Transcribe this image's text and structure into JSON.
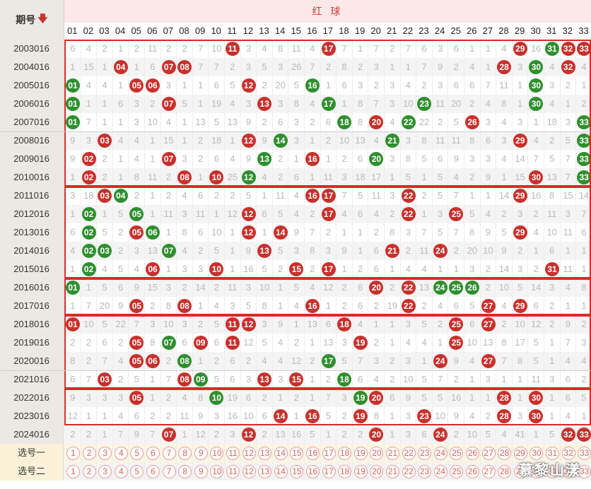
{
  "header": {
    "period_label": "期号",
    "period_sort_icon": "down-arrow-icon",
    "section_title": "红 球"
  },
  "numbers": [
    "01",
    "02",
    "03",
    "04",
    "05",
    "06",
    "07",
    "08",
    "09",
    "10",
    "11",
    "12",
    "13",
    "14",
    "15",
    "16",
    "17",
    "18",
    "19",
    "20",
    "21",
    "22",
    "23",
    "24",
    "25",
    "26",
    "27",
    "28",
    "29",
    "30",
    "31",
    "32",
    "33"
  ],
  "rows": [
    {
      "period": "2003016",
      "cells": [
        "6",
        "4",
        "2",
        "1",
        "2",
        "11",
        "2",
        "2",
        "7",
        "10",
        "R",
        "3",
        "4",
        "8",
        "11",
        "4",
        "R",
        "7",
        "1",
        "7",
        "2",
        "7",
        "6",
        "3",
        "6",
        "1",
        "1",
        "4",
        "R",
        "16",
        "G",
        "R",
        "R"
      ]
    },
    {
      "period": "2004016",
      "cells": [
        "1",
        "15",
        "1",
        "R",
        "1",
        "6",
        "R",
        "R",
        "7",
        "7",
        "2",
        "3",
        "5",
        "3",
        "26",
        "7",
        "2",
        "8",
        "2",
        "3",
        "1",
        "1",
        "7",
        "9",
        "2",
        "4",
        "1",
        "R",
        "3",
        "G",
        "4",
        "R",
        "4"
      ]
    },
    {
      "period": "2005016",
      "cells": [
        "G",
        "4",
        "4",
        "1",
        "R",
        "R",
        "3",
        "1",
        "1",
        "6",
        "5",
        "R",
        "2",
        "20",
        "5",
        "G",
        "1",
        "6",
        "3",
        "2",
        "3",
        "4",
        "2",
        "3",
        "6",
        "6",
        "7",
        "11",
        "1",
        "G",
        "3",
        "2",
        "1"
      ]
    },
    {
      "period": "2006016",
      "cells": [
        "G",
        "1",
        "1",
        "6",
        "3",
        "2",
        "R",
        "5",
        "1",
        "19",
        "4",
        "3",
        "R",
        "3",
        "8",
        "4",
        "G",
        "1",
        "8",
        "7",
        "3",
        "10",
        "G",
        "11",
        "20",
        "2",
        "4",
        "8",
        "1",
        "G",
        "4",
        "1",
        "2"
      ]
    },
    {
      "period": "2007016",
      "cells": [
        "G",
        "7",
        "1",
        "1",
        "3",
        "10",
        "4",
        "1",
        "13",
        "5",
        "13",
        "9",
        "2",
        "6",
        "3",
        "2",
        "6",
        "G",
        "8",
        "R",
        "4",
        "G",
        "22",
        "2",
        "5",
        "R",
        "3",
        "4",
        "3",
        "1",
        "18",
        "3",
        "G"
      ]
    },
    {
      "period": "2008016",
      "cells": [
        "9",
        "3",
        "R",
        "4",
        "4",
        "1",
        "15",
        "1",
        "2",
        "18",
        "1",
        "R",
        "9",
        "G",
        "3",
        "1",
        "2",
        "10",
        "13",
        "4",
        "G",
        "3",
        "8",
        "11",
        "11",
        "8",
        "6",
        "3",
        "R",
        "4",
        "2",
        "5",
        "G"
      ]
    },
    {
      "period": "2009016",
      "cells": [
        "9",
        "R",
        "2",
        "1",
        "4",
        "1",
        "R",
        "3",
        "2",
        "6",
        "4",
        "9",
        "G",
        "2",
        "1",
        "R",
        "1",
        "2",
        "6",
        "G",
        "3",
        "8",
        "5",
        "6",
        "9",
        "3",
        "3",
        "4",
        "14",
        "7",
        "5",
        "7",
        "G"
      ]
    },
    {
      "period": "2010016",
      "cells": [
        "1",
        "R",
        "2",
        "1",
        "8",
        "11",
        "2",
        "R",
        "1",
        "R",
        "25",
        "G",
        "4",
        "2",
        "6",
        "1",
        "11",
        "3",
        "18",
        "17",
        "1",
        "5",
        "1",
        "5",
        "4",
        "2",
        "9",
        "1",
        "15",
        "R",
        "13",
        "7",
        "G"
      ]
    },
    {
      "period": "2011016",
      "cells": [
        "3",
        "18",
        "R",
        "G",
        "2",
        "1",
        "2",
        "4",
        "6",
        "2",
        "2",
        "5",
        "1",
        "11",
        "4",
        "R",
        "R",
        "7",
        "5",
        "11",
        "3",
        "R",
        "2",
        "5",
        "7",
        "1",
        "1",
        "14",
        "R",
        "16",
        "8",
        "15",
        "14"
      ]
    },
    {
      "period": "2012016",
      "cells": [
        "1",
        "G",
        "1",
        "5",
        "G",
        "1",
        "11",
        "3",
        "11",
        "1",
        "12",
        "R",
        "6",
        "5",
        "4",
        "2",
        "R",
        "4",
        "6",
        "4",
        "2",
        "R",
        "1",
        "3",
        "R",
        "5",
        "4",
        "2",
        "3",
        "2",
        "11",
        "3",
        "7"
      ]
    },
    {
      "period": "2013016",
      "cells": [
        "6",
        "G",
        "5",
        "2",
        "R",
        "G",
        "1",
        "8",
        "6",
        "10",
        "1",
        "R",
        "1",
        "R",
        "9",
        "7",
        "2",
        "1",
        "1",
        "2",
        "8",
        "3",
        "7",
        "5",
        "7",
        "8",
        "9",
        "5",
        "R",
        "4",
        "10",
        "11",
        "6"
      ]
    },
    {
      "period": "2014016",
      "cells": [
        "4",
        "G",
        "G",
        "2",
        "3",
        "13",
        "G",
        "4",
        "2",
        "5",
        "1",
        "9",
        "R",
        "5",
        "3",
        "8",
        "3",
        "9",
        "1",
        "6",
        "R",
        "2",
        "11",
        "R",
        "2",
        "20",
        "10",
        "9",
        "2",
        "1",
        "6",
        "1",
        "1"
      ]
    },
    {
      "period": "2015016",
      "cells": [
        "1",
        "G",
        "4",
        "5",
        "4",
        "R",
        "1",
        "3",
        "3",
        "R",
        "1",
        "16",
        "5",
        "2",
        "R",
        "2",
        "R",
        "1",
        "2",
        "6",
        "1",
        "4",
        "4",
        "1",
        "1",
        "3",
        "2",
        "14",
        "3",
        "2",
        "R",
        "11",
        "1"
      ]
    },
    {
      "period": "2016016",
      "cells": [
        "G",
        "1",
        "5",
        "6",
        "9",
        "15",
        "3",
        "2",
        "14",
        "2",
        "11",
        "3",
        "10",
        "1",
        "5",
        "4",
        "12",
        "2",
        "6",
        "R",
        "2",
        "R",
        "13",
        "G",
        "G",
        "G",
        "2",
        "10",
        "5",
        "14",
        "3",
        "4",
        "8"
      ]
    },
    {
      "period": "2017016",
      "cells": [
        "1",
        "7",
        "20",
        "9",
        "R",
        "2",
        "8",
        "R",
        "1",
        "4",
        "3",
        "5",
        "8",
        "1",
        "4",
        "R",
        "1",
        "2",
        "6",
        "2",
        "19",
        "R",
        "2",
        "4",
        "6",
        "5",
        "R",
        "4",
        "R",
        "6",
        "2",
        "1",
        "1"
      ]
    },
    {
      "period": "2018016",
      "cells": [
        "R",
        "10",
        "5",
        "22",
        "7",
        "3",
        "10",
        "3",
        "2",
        "5",
        "R",
        "R",
        "3",
        "9",
        "1",
        "13",
        "6",
        "R",
        "4",
        "1",
        "1",
        "3",
        "5",
        "2",
        "R",
        "6",
        "R",
        "2",
        "10",
        "12",
        "2",
        "9",
        "2"
      ]
    },
    {
      "period": "2019016",
      "cells": [
        "2",
        "2",
        "6",
        "2",
        "R",
        "8",
        "G",
        "6",
        "R",
        "6",
        "R",
        "12",
        "5",
        "4",
        "2",
        "1",
        "13",
        "3",
        "R",
        "2",
        "1",
        "4",
        "4",
        "1",
        "R",
        "10",
        "13",
        "8",
        "17",
        "5",
        "1",
        "7",
        "3"
      ]
    },
    {
      "period": "2020016",
      "cells": [
        "8",
        "2",
        "7",
        "4",
        "R",
        "R",
        "2",
        "G",
        "1",
        "2",
        "6",
        "2",
        "4",
        "4",
        "12",
        "2",
        "G",
        "5",
        "7",
        "3",
        "2",
        "3",
        "1",
        "R",
        "9",
        "4",
        "R",
        "7",
        "8",
        "5",
        "1",
        "4",
        "4"
      ]
    },
    {
      "period": "2021016",
      "cells": [
        "6",
        "7",
        "R",
        "2",
        "5",
        "1",
        "7",
        "R",
        "G",
        "5",
        "6",
        "3",
        "R",
        "3",
        "R",
        "1",
        "2",
        "G",
        "6",
        "4",
        "2",
        "10",
        "5",
        "7",
        "2",
        "1",
        "3",
        "1",
        "1",
        "11",
        "3",
        "6",
        "2"
      ]
    },
    {
      "period": "2022016",
      "cells": [
        "9",
        "3",
        "3",
        "3",
        "R",
        "1",
        "2",
        "4",
        "8",
        "G",
        "19",
        "6",
        "2",
        "1",
        "2",
        "1",
        "7",
        "3",
        "G",
        "R",
        "6",
        "9",
        "5",
        "5",
        "16",
        "1",
        "1",
        "R",
        "1",
        "R",
        "1",
        "6",
        "5"
      ]
    },
    {
      "period": "2023016",
      "cells": [
        "12",
        "1",
        "1",
        "4",
        "6",
        "2",
        "2",
        "11",
        "9",
        "3",
        "16",
        "10",
        "6",
        "R",
        "1",
        "R",
        "5",
        "2",
        "R",
        "8",
        "1",
        "3",
        "R",
        "10",
        "9",
        "4",
        "2",
        "R",
        "3",
        "R",
        "1",
        "4",
        "1"
      ]
    },
    {
      "period": "2024016",
      "cells": [
        "2",
        "2",
        "1",
        "7",
        "9",
        "7",
        "R",
        "1",
        "12",
        "2",
        "3",
        "R",
        "2",
        "13",
        "16",
        "5",
        "1",
        "2",
        "2",
        "R",
        "1",
        "3",
        "6",
        "R",
        "2",
        "10",
        "5",
        "4",
        "41",
        "1",
        "5",
        "R",
        "R"
      ]
    }
  ],
  "picks": [
    {
      "label": "选号一"
    },
    {
      "label": "选号二"
    }
  ],
  "watermark": "慕黎山漾"
}
